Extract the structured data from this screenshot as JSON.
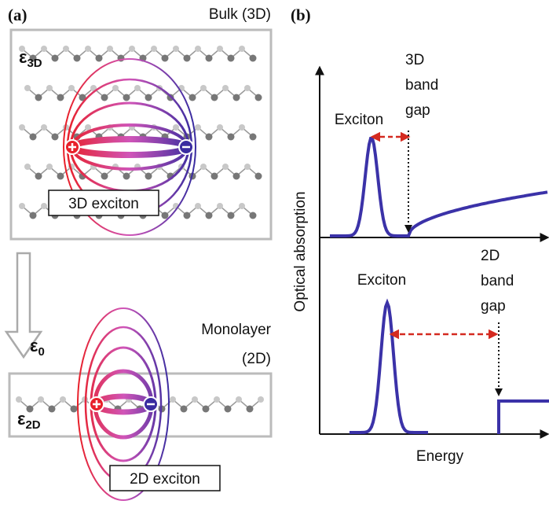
{
  "panel_a": {
    "label": "(a)",
    "bulk_label": "Bulk (3D)",
    "eps_3d": {
      "symbol": "ε",
      "sub": "3D"
    },
    "exciton_3d": "3D exciton",
    "eps_0": {
      "symbol": "ε",
      "sub": "0"
    },
    "monolayer_label": [
      "Monolayer",
      "(2D)"
    ],
    "eps_2d": {
      "symbol": "ε",
      "sub": "2D"
    },
    "exciton_2d": "2D exciton"
  },
  "panel_b": {
    "label": "(b)",
    "y_axis": "Optical absorption",
    "x_axis": "Energy",
    "top": {
      "peak_label": "Exciton",
      "gap_label": [
        "3D",
        "band",
        "gap"
      ]
    },
    "bottom": {
      "peak_label": "Exciton",
      "gap_label": [
        "2D",
        "band",
        "gap"
      ]
    }
  }
}
